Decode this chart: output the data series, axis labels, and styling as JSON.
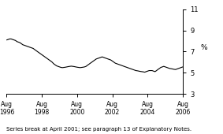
{
  "title": "",
  "ylabel": "%",
  "xlim_years": [
    1996,
    2006
  ],
  "ylim": [
    3,
    11
  ],
  "yticks": [
    3,
    5,
    7,
    9,
    11
  ],
  "xtick_years": [
    1996,
    1998,
    2000,
    2002,
    2004,
    2006
  ],
  "xtick_labels": [
    "Aug\n1996",
    "Aug\n1998",
    "Aug\n2000",
    "Aug\n2002",
    "Aug\n2004",
    "Aug\n2006"
  ],
  "line_color": "#000000",
  "line_width": 0.8,
  "footnote": "Series break at April 2001; see paragraph 13 of Explanatory Notes.",
  "footnote_fontsize": 5.0,
  "values": [
    8.1,
    8.15,
    8.2,
    8.2,
    8.15,
    8.1,
    8.05,
    7.95,
    7.9,
    7.85,
    7.75,
    7.65,
    7.6,
    7.55,
    7.5,
    7.45,
    7.4,
    7.35,
    7.3,
    7.2,
    7.1,
    7.0,
    6.9,
    6.8,
    6.7,
    6.6,
    6.5,
    6.4,
    6.3,
    6.2,
    6.1,
    6.0,
    5.85,
    5.75,
    5.65,
    5.6,
    5.55,
    5.5,
    5.48,
    5.5,
    5.52,
    5.55,
    5.58,
    5.6,
    5.62,
    5.6,
    5.58,
    5.55,
    5.52,
    5.5,
    5.48,
    5.5,
    5.52,
    5.55,
    5.6,
    5.7,
    5.8,
    5.9,
    6.0,
    6.1,
    6.2,
    6.3,
    6.35,
    6.4,
    6.45,
    6.5,
    6.45,
    6.4,
    6.35,
    6.3,
    6.25,
    6.2,
    6.1,
    6.0,
    5.9,
    5.85,
    5.8,
    5.75,
    5.7,
    5.65,
    5.6,
    5.55,
    5.5,
    5.45,
    5.4,
    5.35,
    5.3,
    5.25,
    5.2,
    5.18,
    5.15,
    5.12,
    5.1,
    5.08,
    5.05,
    5.1,
    5.15,
    5.2,
    5.2,
    5.2,
    5.15,
    5.1,
    5.2,
    5.3,
    5.4,
    5.5,
    5.55,
    5.6,
    5.55,
    5.5,
    5.45,
    5.4,
    5.38,
    5.35,
    5.32,
    5.3,
    5.35,
    5.4,
    5.45,
    5.5,
    5.55
  ]
}
